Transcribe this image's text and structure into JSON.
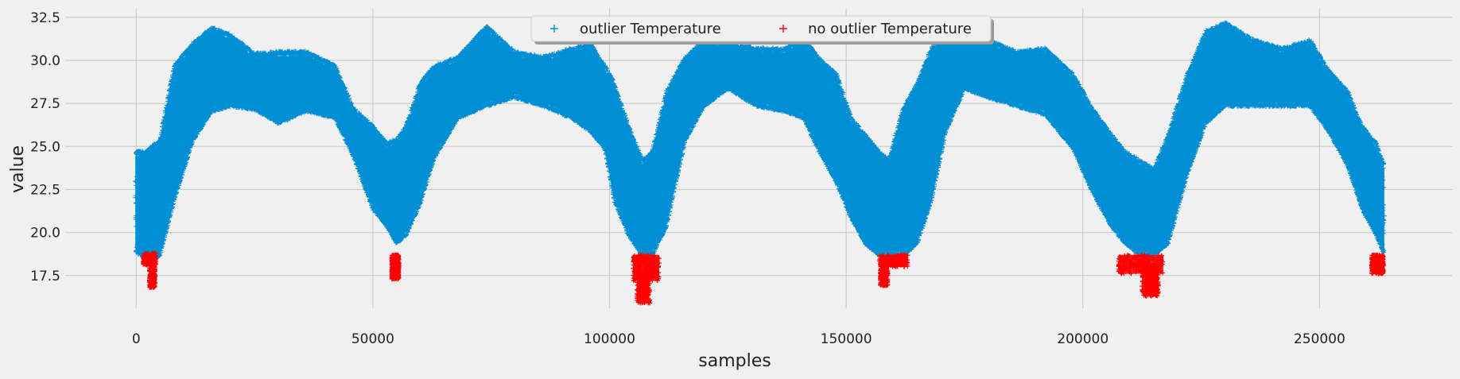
{
  "chart_data": {
    "type": "scatter",
    "title": "",
    "xlabel": "samples",
    "ylabel": "value",
    "xlim": [
      -15000,
      278000
    ],
    "ylim": [
      15.6,
      33.0
    ],
    "xticks": [
      0,
      50000,
      100000,
      150000,
      200000,
      250000
    ],
    "yticks": [
      17.5,
      20.0,
      22.5,
      25.0,
      27.5,
      30.0,
      32.5
    ],
    "grid": true,
    "legend": {
      "placement": "top-center",
      "columns": 2
    },
    "series": [
      {
        "name": "outlier Temperature",
        "marker": "+",
        "color": "#008fd5",
        "envelope": {
          "x": [
            0,
            2000,
            5000,
            8000,
            12000,
            16000,
            20000,
            25000,
            30000,
            36000,
            42000,
            46000,
            50000,
            53000,
            55000,
            57000,
            60000,
            63000,
            68000,
            74000,
            80000,
            86000,
            92000,
            96000,
            99000,
            101000,
            104000,
            107000,
            109000,
            112000,
            116000,
            120000,
            125000,
            131000,
            137000,
            141000,
            144000,
            148000,
            151000,
            154000,
            157000,
            159000,
            162000,
            165000,
            168000,
            171000,
            175000,
            180000,
            186000,
            192000,
            198000,
            202000,
            206000,
            209000,
            212000,
            215000,
            218000,
            222000,
            226000,
            230000,
            236000,
            242000,
            248000,
            252000,
            256000,
            259000,
            262000,
            263500
          ],
          "upper": [
            24.5,
            24.5,
            25.2,
            29.5,
            30.8,
            31.7,
            31.3,
            30.2,
            30.3,
            30.3,
            29.5,
            27.0,
            26.0,
            25.0,
            25.2,
            26.0,
            28.5,
            29.5,
            30.0,
            31.8,
            30.3,
            30.0,
            30.5,
            30.8,
            29.5,
            28.5,
            26.0,
            24.0,
            24.5,
            28.0,
            30.0,
            31.0,
            30.8,
            30.5,
            30.5,
            31.2,
            30.0,
            29.0,
            26.5,
            25.5,
            24.5,
            24.0,
            27.0,
            28.5,
            30.5,
            32.0,
            32.2,
            31.0,
            30.3,
            30.5,
            29.0,
            27.0,
            25.5,
            24.5,
            24.0,
            23.5,
            25.5,
            29.0,
            31.5,
            32.0,
            31.0,
            30.5,
            31.0,
            29.2,
            28.0,
            26.0,
            25.0,
            23.8
          ],
          "lower": [
            19.0,
            18.6,
            18.8,
            22.0,
            25.5,
            27.2,
            27.5,
            27.3,
            26.5,
            27.2,
            26.8,
            24.5,
            21.5,
            20.5,
            19.5,
            20.0,
            21.8,
            24.5,
            26.8,
            27.5,
            28.0,
            27.5,
            26.8,
            26.0,
            25.0,
            22.0,
            20.0,
            18.8,
            18.8,
            20.5,
            25.5,
            27.5,
            28.5,
            27.5,
            27.2,
            26.8,
            25.0,
            23.0,
            21.0,
            19.5,
            18.8,
            18.8,
            18.8,
            19.5,
            22.0,
            26.0,
            28.5,
            28.0,
            27.5,
            27.0,
            25.0,
            22.5,
            20.5,
            19.5,
            18.8,
            18.8,
            19.5,
            23.5,
            26.5,
            27.5,
            27.5,
            27.5,
            27.5,
            26.0,
            24.0,
            21.5,
            20.0,
            19.0
          ],
          "density": 8
        }
      },
      {
        "name": "no outlier Temperature",
        "marker": "+",
        "color": "#ff0000",
        "clusters": [
          {
            "x": [
              1500,
              4200
            ],
            "y": [
              18.8,
              18.1
            ],
            "core_x": [
              2800,
              4000
            ],
            "core_y": [
              18.1,
              16.8
            ]
          },
          {
            "x": [
              54000,
              55500
            ],
            "y": [
              18.7,
              17.3
            ],
            "core_x": [
              54000,
              55500
            ],
            "core_y": [
              18.7,
              17.3
            ]
          },
          {
            "x": [
              105000,
              110500
            ],
            "y": [
              18.7,
              17.2
            ],
            "core_x": [
              105800,
              108500
            ],
            "core_y": [
              17.8,
              15.9
            ]
          },
          {
            "x": [
              157000,
              163000
            ],
            "y": [
              18.7,
              18.0
            ],
            "core_x": [
              157200,
              158800
            ],
            "core_y": [
              18.4,
              16.9
            ]
          },
          {
            "x": [
              207500,
              217000
            ],
            "y": [
              18.7,
              17.6
            ],
            "core_x": [
              212500,
              216000
            ],
            "core_y": [
              18.0,
              16.3
            ]
          },
          {
            "x": [
              261000,
              263500
            ],
            "y": [
              18.7,
              17.6
            ],
            "core_x": [
              261000,
              263500
            ],
            "core_y": [
              18.7,
              17.6
            ]
          }
        ]
      }
    ]
  }
}
